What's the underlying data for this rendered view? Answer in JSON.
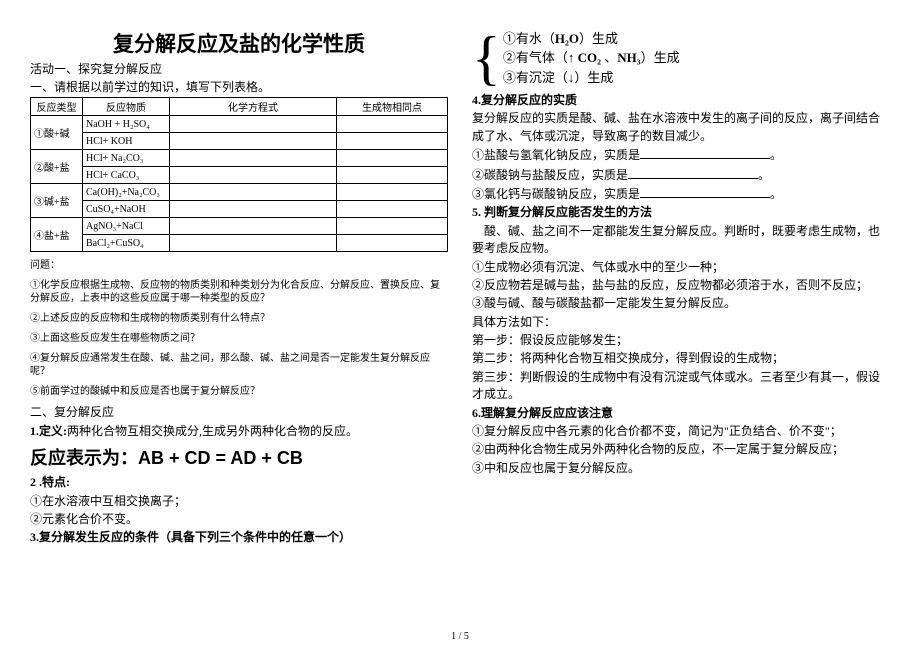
{
  "title": "复分解反应及盐的化学性质",
  "activity": "活动一、探究复分解反应",
  "instruction": "一、请根据以前学过的知识，填写下列表格。",
  "table": {
    "headers": [
      "反应类型",
      "反应物质",
      "化学方程式",
      "生成物相同点"
    ],
    "rows": [
      [
        "①酸+碱",
        "NaOH + H₂SO₄",
        "",
        ""
      ],
      [
        "",
        "HCl+ KOH",
        "",
        ""
      ],
      [
        "②酸+盐",
        "HCl+ Na₂CO₃",
        "",
        ""
      ],
      [
        "",
        "HCl+ CaCO₃",
        "",
        ""
      ],
      [
        "③碱+盐",
        "Ca(OH)₂+Na₂CO₃",
        "",
        ""
      ],
      [
        "",
        "CuSO₄+NaOH",
        "",
        ""
      ],
      [
        "④盐+盐",
        "AgNO₃+NaCl",
        "",
        ""
      ],
      [
        "",
        "BaCl₂+CuSO₄",
        "",
        ""
      ]
    ]
  },
  "problem_label": "问题：",
  "q1": "①化学反应根据生成物、反应物的物质类别和种类划分为化合反应、分解反应、置换反应、复分解反应，上表中的这些反应属于哪一种类型的反应？",
  "q2": "②上述反应的反应物和生成物的物质类别有什么特点？",
  "q3": "③上面这些反应发生在哪些物质之间？",
  "q4": "④复分解反应通常发生在酸、碱、盐之间，那么酸、碱、盐之间是否一定能发生复分解反应呢？",
  "q5": "⑤前面学过的酸碱中和反应是否也属于复分解反应？",
  "sec2": "二、复分解反应",
  "def1_label": "1.定义:",
  "def1_text": "两种化合物互相交换成分,生成另外两种化合物的反应。",
  "eq": "反应表示为：AB + CD = AD + CB",
  "pt2_label": "2 .特点:",
  "pt2_a": "①在水溶液中互相交换离子；",
  "pt2_b": "②元素化合价不变。",
  "pt3_label": "3.复分解发生反应的条件（具备下列三个条件中的任意一个）",
  "bracket_1a": "①有水（",
  "bracket_1b": "H₂O",
  "bracket_1c": "）生成",
  "bracket_2a": "②有气体（↑ ",
  "bracket_2b": "CO₂",
  "bracket_2c": " 、",
  "bracket_2d": "NH₃",
  "bracket_2e": "）生成",
  "bracket_3": "③有沉淀（↓）生成",
  "sec4": "4.复分解反应的实质",
  "r4_1": "复分解反应的实质是酸、碱、盐在水溶液中发生的离子间的反应，离子间结合成了水、气体或沉淀，导致离子的数目减少。",
  "r4_2a": "①盐酸与氢氧化钠反应，实质是",
  "r4_2b": "。",
  "r4_3a": "②碳酸钠与盐酸反应，实质是",
  "r4_3b": "。",
  "r4_4a": "③氯化钙与碳酸钠反应，实质是",
  "r4_4b": "。",
  "sec5": "5. 判断复分解反应能否发生的方法",
  "r5_1": "　酸、碱、盐之间不一定都能发生复分解反应。判断时，既要考虑生成物，也要考虑反应物。",
  "r5_2": "①生成物必须有沉淀、气体或水中的至少一种；",
  "r5_3": "②反应物若是碱与盐，盐与盐的反应，反应物都必须溶于水，否则不反应；",
  "r5_4": "③酸与碱、酸与碳酸盐都一定能发生复分解反应。",
  "r5_5": "具体方法如下：",
  "r5_6": "第一步：假设反应能够发生；",
  "r5_7": "第二步：将两种化合物互相交换成分，得到假设的生成物；",
  "r5_8": "第三步：判断假设的生成物中有没有沉淀或气体或水。三者至少有其一，假设才成立。",
  "sec6": "6.理解复分解反应应该注意",
  "r6_1": "①复分解反应中各元素的化合价都不变，简记为\"正负结合、价不变\"；",
  "r6_2": "②由两种化合物生成另外两种化合物的反应，不一定属于复分解反应；",
  "r6_3": "③中和反应也属于复分解反应。",
  "footer": "1 / 5"
}
